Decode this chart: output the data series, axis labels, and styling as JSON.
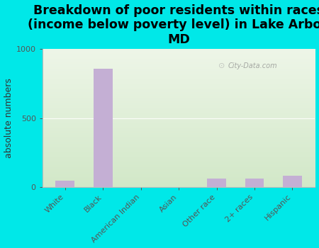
{
  "title": "Breakdown of poor residents within races\n(income below poverty level) in Lake Arbor,\nMD",
  "categories": [
    "White",
    "Black",
    "American Indian",
    "Asian",
    "Other race",
    "2+ races",
    "Hispanic"
  ],
  "values": [
    47,
    860,
    0,
    0,
    62,
    58,
    82
  ],
  "bar_color": "#c4afd4",
  "ylabel": "absolute numbers",
  "ylim": [
    0,
    1000
  ],
  "yticks": [
    0,
    500,
    1000
  ],
  "background_outer": "#00e8e8",
  "watermark": "City-Data.com",
  "title_fontsize": 12.5,
  "ylabel_fontsize": 9,
  "tick_fontsize": 8
}
